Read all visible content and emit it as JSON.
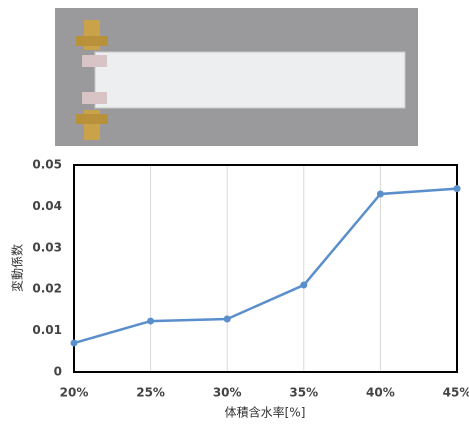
{
  "chart_data": {
    "type": "line",
    "x_label": "体積含水率[%]",
    "y_label": "変動係数",
    "categories": [
      "20%",
      "25%",
      "30%",
      "35%",
      "40%",
      "45%"
    ],
    "series": [
      {
        "name": "変動係数",
        "color": "#5b8fcb",
        "values": [
          0.007,
          0.0123,
          0.0128,
          0.021,
          0.043,
          0.0443
        ]
      }
    ],
    "ylim": [
      0,
      0.05
    ],
    "yticks": [
      0,
      0.01,
      0.02,
      0.03,
      0.04,
      0.05
    ],
    "grid": "x"
  }
}
